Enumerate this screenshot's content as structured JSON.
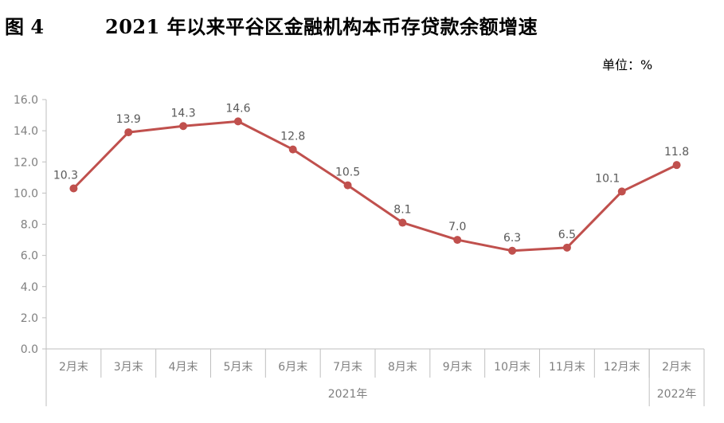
{
  "header": {
    "figure_no": "图 4",
    "title": "2021 年以来平谷区金融机构本币存贷款余额增速",
    "unit": "单位：%"
  },
  "colors": {
    "line": "#c0504d",
    "axis": "#bfbfbf",
    "text": "#7f7f7f"
  },
  "chart_data": {
    "type": "line",
    "title": "2021 年以来平谷区金融机构本币存贷款余额增速",
    "ylabel": "",
    "xlabel": "",
    "ylim": [
      0,
      16
    ],
    "yticks": [
      "0.0",
      "2.0",
      "4.0",
      "6.0",
      "8.0",
      "10.0",
      "12.0",
      "14.0",
      "16.0"
    ],
    "grid": false,
    "legend": "none",
    "categories": [
      "2月末",
      "3月末",
      "4月末",
      "5月末",
      "6月末",
      "7月末",
      "8月末",
      "9月末",
      "10月末",
      "11月末",
      "12月末",
      "2月末"
    ],
    "groups": [
      {
        "label": "2021年",
        "count": 11
      },
      {
        "label": "2022年",
        "count": 1
      }
    ],
    "series": [
      {
        "values": [
          10.3,
          13.9,
          14.3,
          14.6,
          12.8,
          10.5,
          8.1,
          7.0,
          6.3,
          6.5,
          10.1,
          11.8
        ],
        "labels": [
          "10.3",
          "13.9",
          "14.3",
          "14.6",
          "12.8",
          "10.5",
          "8.1",
          "7.0",
          "6.3",
          "6.5",
          "10.1",
          "11.8"
        ]
      }
    ]
  }
}
